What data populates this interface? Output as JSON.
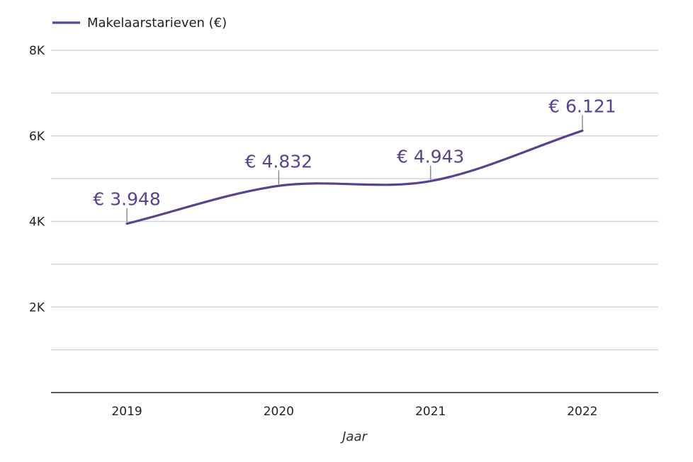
{
  "chart_data": {
    "type": "line",
    "x": [
      "2019",
      "2020",
      "2021",
      "2022"
    ],
    "series": [
      {
        "name": "Makelaarstarieven (€)",
        "values": [
          3948,
          4832,
          4943,
          6121
        ],
        "data_labels": [
          "€ 3.948",
          "€ 4.832",
          "€ 4.943",
          "€ 6.121"
        ],
        "color": "#5a4290"
      }
    ],
    "xlabel": "Jaar",
    "ylabel": "",
    "ylim": [
      0,
      8000
    ],
    "y_ticks": [
      {
        "value": 2000,
        "label": "2K"
      },
      {
        "value": 4000,
        "label": "4K"
      },
      {
        "value": 6000,
        "label": "6K"
      },
      {
        "value": 8000,
        "label": "8K"
      }
    ],
    "grid_step": 1000,
    "grid": true,
    "legend_position": "top-left",
    "smooth": true
  }
}
